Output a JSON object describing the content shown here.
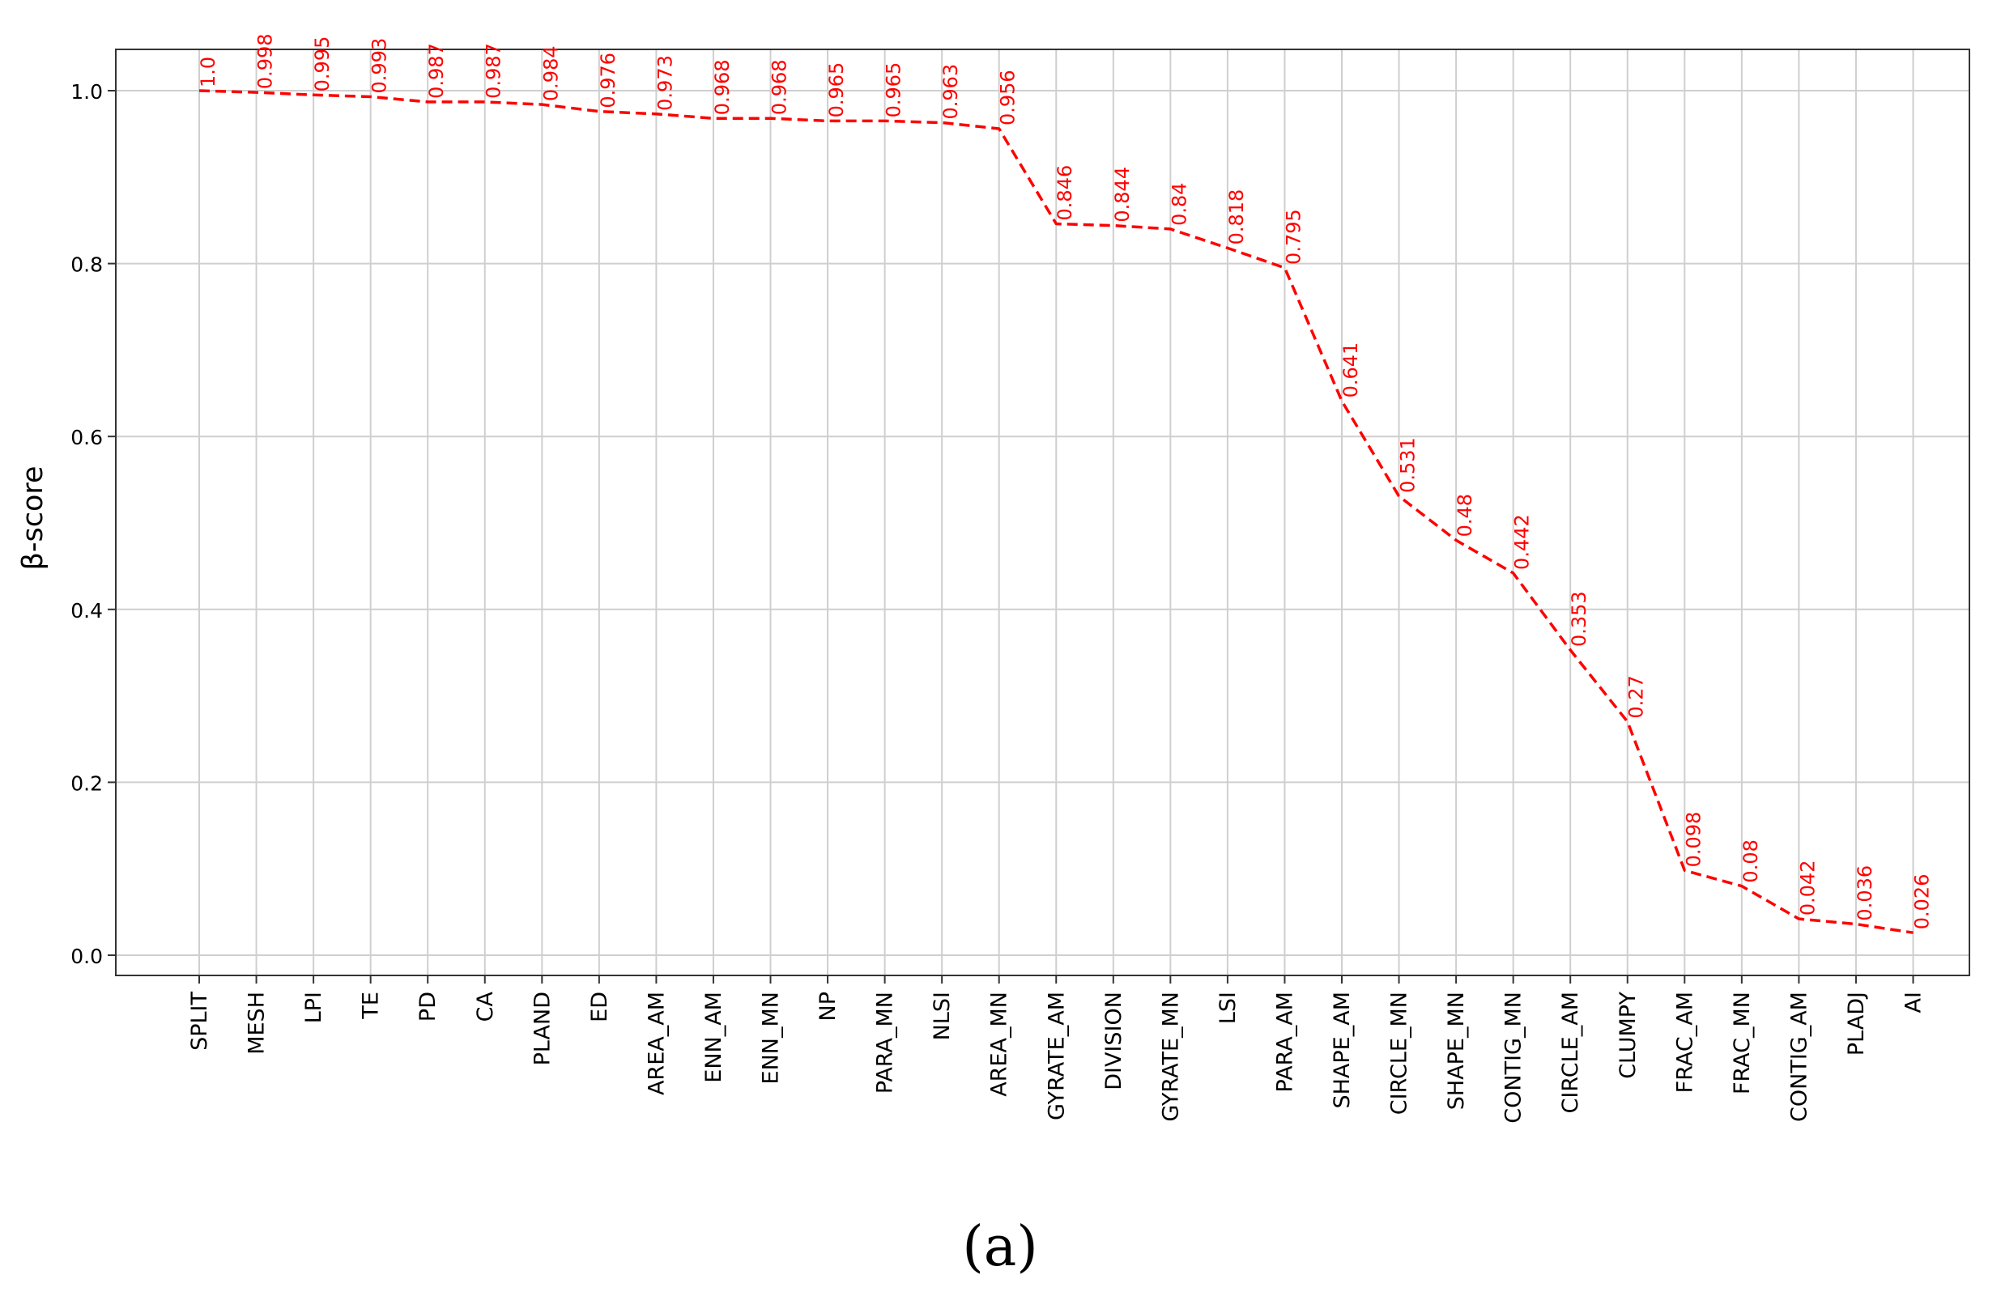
{
  "chart_data": {
    "type": "line",
    "title": "",
    "xlabel": "",
    "ylabel": "β-score",
    "ylim": [
      -0.02,
      1.05
    ],
    "yticks": [
      0.0,
      0.2,
      0.4,
      0.6,
      0.8,
      1.0
    ],
    "ytick_labels": [
      "0.0",
      "0.2",
      "0.4",
      "0.6",
      "0.8",
      "1.0"
    ],
    "grid": true,
    "line_style": "dashed",
    "line_color": "#ff0000",
    "label_color": "#ff0000",
    "categories": [
      "SPLIT",
      "MESH",
      "LPI",
      "TE",
      "PD",
      "CA",
      "PLAND",
      "ED",
      "AREA_AM",
      "ENN_AM",
      "ENN_MN",
      "NP",
      "PARA_MN",
      "NLSI",
      "AREA_MN",
      "GYRATE_AM",
      "DIVISION",
      "GYRATE_MN",
      "LSI",
      "PARA_AM",
      "SHAPE_AM",
      "CIRCLE_MN",
      "SHAPE_MN",
      "CONTIG_MN",
      "CIRCLE_AM",
      "CLUMPY",
      "FRAC_AM",
      "FRAC_MN",
      "CONTIG_AM",
      "PLADJ",
      "AI"
    ],
    "values": [
      1.0,
      0.998,
      0.995,
      0.993,
      0.987,
      0.987,
      0.984,
      0.976,
      0.973,
      0.968,
      0.968,
      0.965,
      0.965,
      0.963,
      0.956,
      0.846,
      0.844,
      0.84,
      0.818,
      0.795,
      0.641,
      0.531,
      0.48,
      0.442,
      0.353,
      0.27,
      0.098,
      0.08,
      0.042,
      0.036,
      0.026
    ],
    "data_labels": [
      "1.0",
      "0.998",
      "0.995",
      "0.993",
      "0.987",
      "0.987",
      "0.984",
      "0.976",
      "0.973",
      "0.968",
      "0.968",
      "0.965",
      "0.965",
      "0.963",
      "0.956",
      "0.846",
      "0.844",
      "0.84",
      "0.818",
      "0.795",
      "0.641",
      "0.531",
      "0.48",
      "0.442",
      "0.353",
      "0.27",
      "0.098",
      "0.08",
      "0.042",
      "0.036",
      "0.026"
    ]
  },
  "caption": "(a)"
}
